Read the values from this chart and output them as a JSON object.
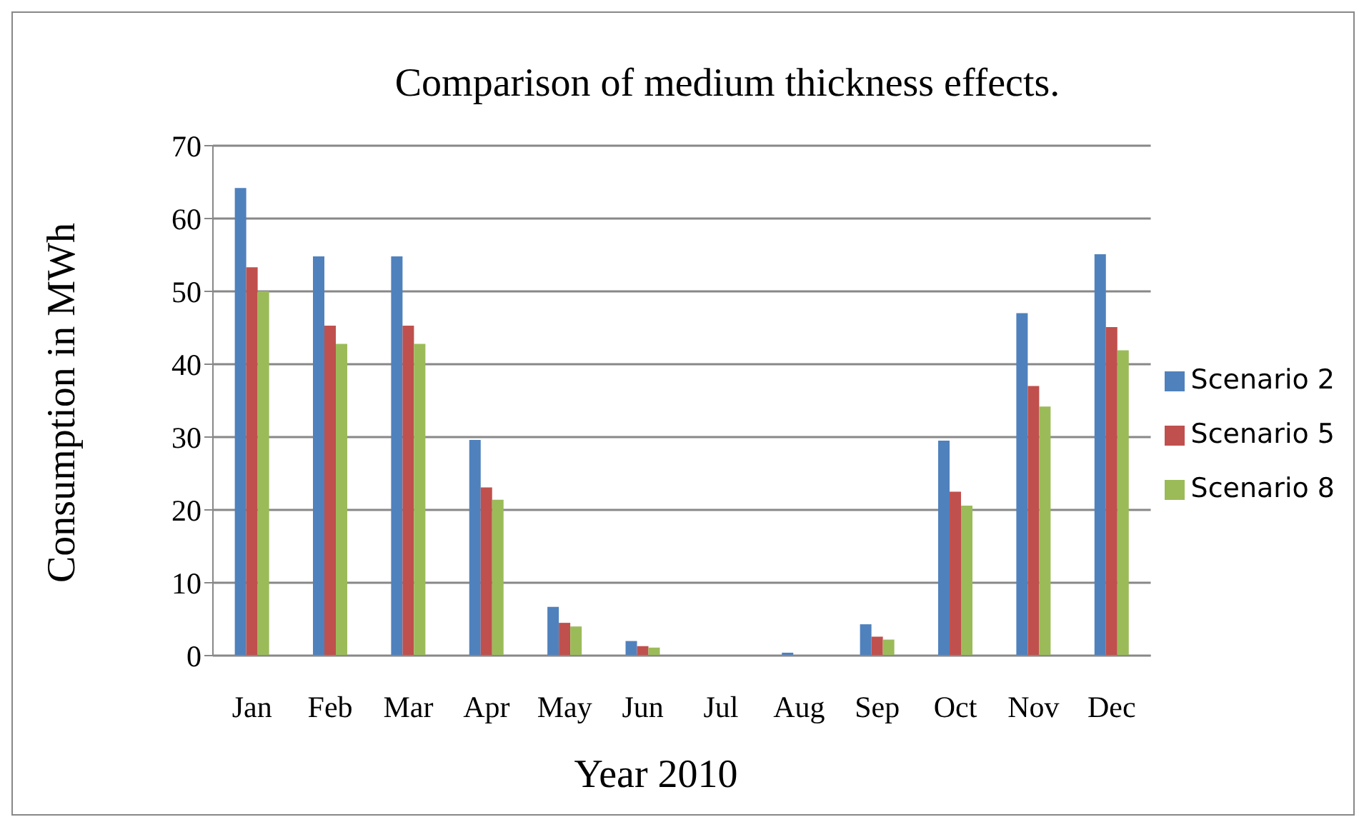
{
  "chart_data": {
    "type": "bar",
    "title": "Comparison of medium thickness effects.",
    "xlabel": "Year 2010",
    "ylabel": "Consumption in MWh",
    "categories": [
      "Jan",
      "Feb",
      "Mar",
      "Apr",
      "May",
      "Jun",
      "Jul",
      "Aug",
      "Sep",
      "Oct",
      "Nov",
      "Dec"
    ],
    "series": [
      {
        "name": "Scenario 2",
        "color": "#4f81bd",
        "values": [
          64.2,
          54.8,
          54.8,
          29.6,
          6.7,
          2,
          0,
          0.4,
          4.3,
          29.5,
          47,
          55.1
        ]
      },
      {
        "name": "Scenario 5",
        "color": "#c0504d",
        "values": [
          53.3,
          45.3,
          45.3,
          23.1,
          4.5,
          1.3,
          0,
          null,
          2.6,
          22.5,
          37,
          45.1
        ]
      },
      {
        "name": "Scenario 8",
        "color": "#9bbb59",
        "values": [
          50,
          42.8,
          42.8,
          21.4,
          4,
          1.1,
          0,
          0.1,
          2.2,
          20.6,
          34.2,
          41.9
        ]
      }
    ],
    "ylim": [
      0,
      70
    ],
    "yticks": [
      0,
      10,
      20,
      30,
      40,
      50,
      60,
      70
    ],
    "grid": "y",
    "legend": "right"
  }
}
